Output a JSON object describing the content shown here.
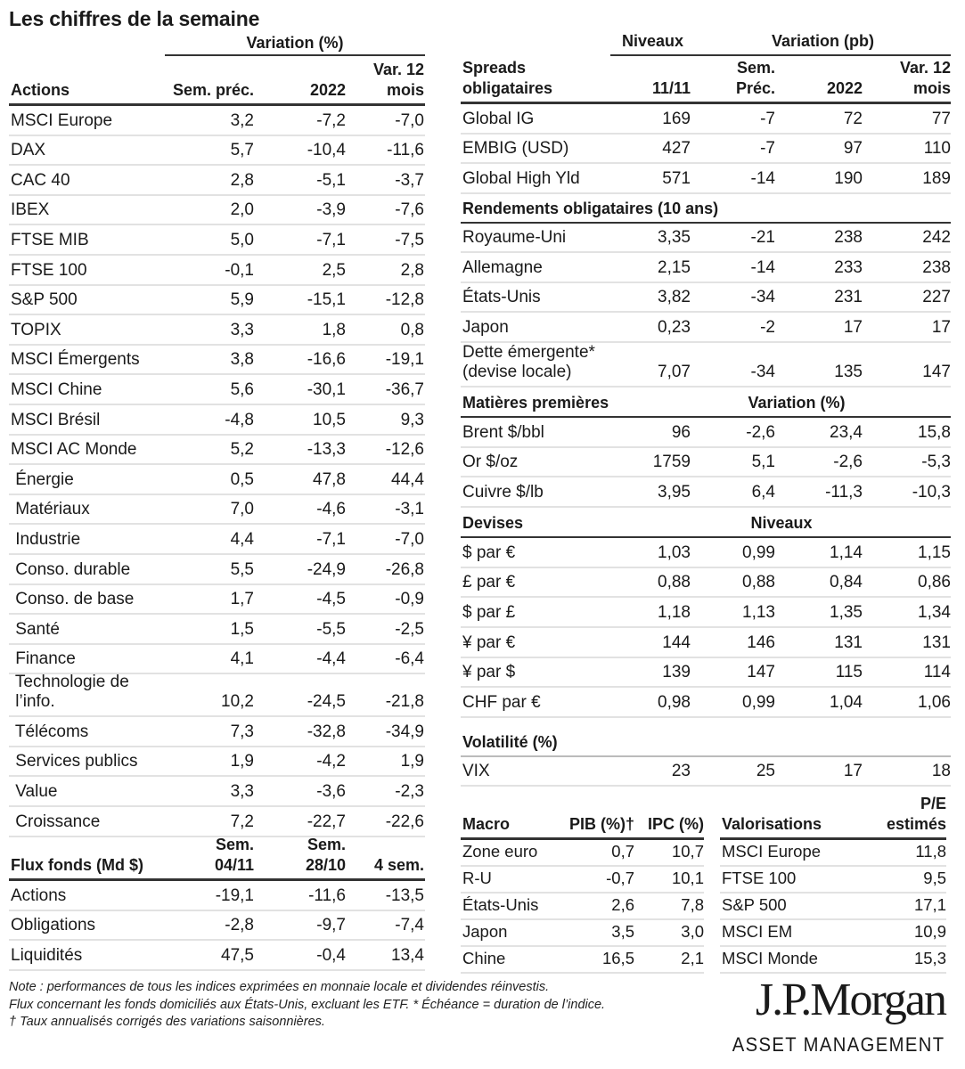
{
  "title": "Les chiffres de la semaine",
  "actions": {
    "group_header": "Variation (%)",
    "headers": [
      "Actions",
      "Sem. préc.",
      "2022",
      "Var. 12\nmois"
    ],
    "rows": [
      [
        "MSCI Europe",
        "3,2",
        "-7,2",
        "-7,0"
      ],
      [
        "DAX",
        "5,7",
        "-10,4",
        "-11,6"
      ],
      [
        "CAC 40",
        "2,8",
        "-5,1",
        "-3,7"
      ],
      [
        "IBEX",
        "2,0",
        "-3,9",
        "-7,6"
      ],
      [
        "FTSE MIB",
        "5,0",
        "-7,1",
        "-7,5"
      ],
      [
        "FTSE 100",
        "-0,1",
        "2,5",
        "2,8"
      ],
      [
        "S&P 500",
        "5,9",
        "-15,1",
        "-12,8"
      ],
      [
        "TOPIX",
        "3,3",
        "1,8",
        "0,8"
      ],
      [
        "MSCI Émergents",
        "3,8",
        "-16,6",
        "-19,1"
      ],
      [
        "MSCI Chine",
        "5,6",
        "-30,1",
        "-36,7"
      ],
      [
        "MSCI Brésil",
        "-4,8",
        "10,5",
        "9,3"
      ],
      [
        "MSCI AC Monde",
        "5,2",
        "-13,3",
        "-12,6"
      ],
      [
        " Énergie",
        "0,5",
        "47,8",
        "44,4"
      ],
      [
        " Matériaux",
        "7,0",
        "-4,6",
        "-3,1"
      ],
      [
        " Industrie",
        "4,4",
        "-7,1",
        "-7,0"
      ],
      [
        " Conso. durable",
        "5,5",
        "-24,9",
        "-26,8"
      ],
      [
        " Conso. de base",
        "1,7",
        "-4,5",
        "-0,9"
      ],
      [
        " Santé",
        "1,5",
        "-5,5",
        "-2,5"
      ],
      [
        " Finance",
        "4,1",
        "-4,4",
        "-6,4"
      ],
      [
        " Technologie de\n l’info.",
        "10,2",
        "-24,5",
        "-21,8"
      ],
      [
        " Télécoms",
        "7,3",
        "-32,8",
        "-34,9"
      ],
      [
        " Services publics",
        "1,9",
        "-4,2",
        "1,9"
      ],
      [
        " Value",
        "3,3",
        "-3,6",
        "-2,3"
      ],
      [
        " Croissance",
        "7,2",
        "-22,7",
        "-22,6"
      ]
    ]
  },
  "spreads": {
    "group_niveaux": "Niveaux",
    "group_variation": "Variation (pb)",
    "headers": [
      "Spreads\nobligataires",
      "11/11",
      "Sem.\nPréc.",
      "2022",
      "Var. 12\nmois"
    ],
    "rows": [
      [
        "Global IG",
        "169",
        "-7",
        "72",
        "77"
      ],
      [
        "EMBIG (USD)",
        "427",
        "-7",
        "97",
        "110"
      ],
      [
        "Global High Yld",
        "571",
        "-14",
        "190",
        "189"
      ]
    ]
  },
  "rendements": {
    "section": "Rendements obligataires (10 ans)",
    "rows": [
      [
        "Royaume-Uni",
        "3,35",
        "-21",
        "238",
        "242"
      ],
      [
        "Allemagne",
        "2,15",
        "-14",
        "233",
        "238"
      ],
      [
        "États-Unis",
        "3,82",
        "-34",
        "231",
        "227"
      ],
      [
        "Japon",
        "0,23",
        "-2",
        "17",
        "17"
      ],
      [
        "Dette émergente*\n(devise locale)",
        "7,07",
        "-34",
        "135",
        "147"
      ]
    ]
  },
  "matieres": {
    "section": "Matières premières",
    "sub": "Variation (%)",
    "rows": [
      [
        "Brent $/bbl",
        "96",
        "-2,6",
        "23,4",
        "15,8"
      ],
      [
        "Or $/oz",
        "1759",
        "5,1",
        "-2,6",
        "-5,3"
      ],
      [
        "Cuivre $/lb",
        "3,95",
        "6,4",
        "-11,3",
        "-10,3"
      ]
    ]
  },
  "devises": {
    "section": "Devises",
    "sub": "Niveaux",
    "rows": [
      [
        "$ par €",
        "1,03",
        "0,99",
        "1,14",
        "1,15"
      ],
      [
        "£ par €",
        "0,88",
        "0,88",
        "0,84",
        "0,86"
      ],
      [
        "$ par £",
        "1,18",
        "1,13",
        "1,35",
        "1,34"
      ],
      [
        "¥ par €",
        "144",
        "146",
        "131",
        "131"
      ],
      [
        "¥ par $",
        "139",
        "147",
        "115",
        "114"
      ],
      [
        "CHF par €",
        "0,98",
        "0,99",
        "1,04",
        "1,06"
      ]
    ]
  },
  "volatilite": {
    "section": "Volatilité (%)",
    "rows": [
      [
        "VIX",
        "23",
        "25",
        "17",
        "18"
      ]
    ]
  },
  "flux": {
    "headers": [
      "Flux fonds (Md $)",
      "Sem.\n04/11",
      "Sem.\n28/10",
      "4 sem."
    ],
    "rows": [
      [
        "Actions",
        "-19,1",
        "-11,6",
        "-13,5"
      ],
      [
        "Obligations",
        "-2,8",
        "-9,7",
        "-7,4"
      ],
      [
        "Liquidités",
        "47,5",
        "-0,4",
        "13,4"
      ]
    ]
  },
  "macro": {
    "headers": [
      "Macro",
      "PIB (%)†",
      "IPC (%)"
    ],
    "rows": [
      [
        "Zone euro",
        "0,7",
        "10,7"
      ],
      [
        "R-U",
        "-0,7",
        "10,1"
      ],
      [
        "États-Unis",
        "2,6",
        "7,8"
      ],
      [
        "Japon",
        "3,5",
        "3,0"
      ],
      [
        "Chine",
        "16,5",
        "2,1"
      ]
    ]
  },
  "valorisations": {
    "headers": [
      "Valorisations",
      "P/E\nestimés"
    ],
    "rows": [
      [
        "MSCI Europe",
        "11,8"
      ],
      [
        "FTSE 100",
        "9,5"
      ],
      [
        "S&P 500",
        "17,1"
      ],
      [
        "MSCI EM",
        "10,9"
      ],
      [
        "MSCI Monde",
        "15,3"
      ]
    ]
  },
  "notes": [
    "Note : performances de tous les indices exprimées en monnaie locale et dividendes réinvestis.",
    "Flux concernant les fonds domiciliés aux États-Unis, excluant les ETF. * Échéance = duration de l’indice.",
    "† Taux annualisés corrigés des variations saisonnières."
  ],
  "logo": {
    "name": "J.P.Morgan",
    "sub": "ASSET MANAGEMENT"
  }
}
